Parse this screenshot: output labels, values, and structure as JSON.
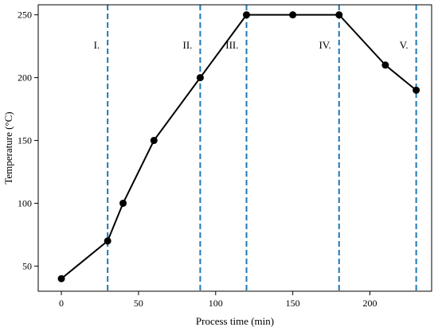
{
  "chart_data": {
    "type": "line",
    "title": "",
    "xlabel": "Process time (min)",
    "ylabel": "Temperature (°C)",
    "xlim": [
      -15,
      240
    ],
    "ylim": [
      30,
      258
    ],
    "x_ticks": [
      0,
      50,
      100,
      150,
      200
    ],
    "y_ticks": [
      50,
      100,
      150,
      200,
      250
    ],
    "grid": false,
    "series": [
      {
        "x": [
          0,
          30,
          40,
          60,
          90,
          120,
          150,
          180,
          210,
          230
        ],
        "y": [
          40,
          70,
          100,
          150,
          200,
          250,
          250,
          250,
          210,
          190
        ],
        "color": "#000000",
        "marker": "circle"
      }
    ],
    "phase_lines": [
      {
        "x": 30,
        "label": "I."
      },
      {
        "x": 90,
        "label": "II."
      },
      {
        "x": 120,
        "label": "III."
      },
      {
        "x": 180,
        "label": "IV."
      },
      {
        "x": 230,
        "label": "V."
      }
    ],
    "phase_line_color": "#1f77b4",
    "phase_line_style": "dashed"
  }
}
